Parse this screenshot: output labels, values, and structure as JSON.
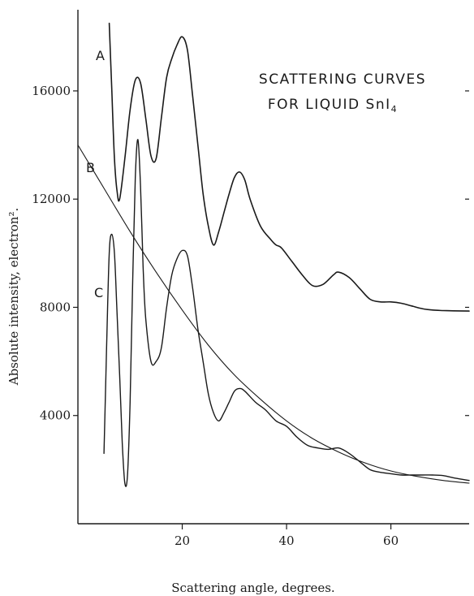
{
  "chart_data": {
    "type": "line",
    "title": "SCATTERING CURVES",
    "title_line2": "FOR LIQUID SnI",
    "title_subscript": "4",
    "xlabel": "Scattering angle, degrees.",
    "ylabel": "Absolute intensity, electron².",
    "xlim": [
      0,
      75
    ],
    "ylim": [
      0,
      19000
    ],
    "x_ticks": [
      20,
      40,
      60
    ],
    "y_ticks": [
      4000,
      8000,
      12000,
      16000
    ],
    "grid": false,
    "legend": "none",
    "series": [
      {
        "name": "A",
        "x": [
          6,
          6.5,
          7,
          7.5,
          8,
          9,
          10,
          11,
          12,
          13,
          14,
          15,
          16,
          17,
          18,
          19,
          20,
          21,
          22,
          23,
          24,
          25,
          26,
          27,
          28,
          29,
          30,
          31,
          32,
          33,
          35,
          37,
          38,
          39,
          41,
          43,
          45,
          47,
          49,
          50,
          52,
          54,
          56,
          58,
          60,
          62,
          64,
          66,
          68,
          70,
          72,
          75
        ],
        "y": [
          18500,
          16000,
          13500,
          12300,
          12000,
          13500,
          15300,
          16400,
          16300,
          15000,
          13600,
          13500,
          15000,
          16500,
          17200,
          17700,
          18000,
          17500,
          15800,
          14000,
          12200,
          11000,
          10300,
          10800,
          11500,
          12200,
          12800,
          13000,
          12700,
          12000,
          11000,
          10500,
          10300,
          10200,
          9700,
          9200,
          8800,
          8850,
          9200,
          9300,
          9100,
          8700,
          8300,
          8200,
          8200,
          8150,
          8050,
          7950,
          7900,
          7880,
          7870,
          7860
        ]
      },
      {
        "name": "B",
        "x": [
          0,
          5,
          10,
          15,
          20,
          25,
          30,
          35,
          40,
          45,
          50,
          55,
          60,
          65,
          70,
          75
        ],
        "y": [
          14000,
          12400,
          10800,
          9300,
          7900,
          6600,
          5500,
          4600,
          3800,
          3150,
          2650,
          2250,
          1950,
          1750,
          1600,
          1500
        ]
      },
      {
        "name": "C",
        "x": [
          5,
          5.5,
          6,
          6.5,
          7,
          7.5,
          8,
          8.5,
          9,
          9.5,
          10,
          10.5,
          11,
          11.5,
          12,
          12.5,
          13,
          14,
          15,
          16,
          17,
          18,
          19,
          20,
          21,
          22,
          23,
          24,
          25,
          26,
          27,
          28,
          29,
          30,
          31,
          32,
          34,
          36,
          38,
          40,
          42,
          44,
          46,
          48,
          50,
          52,
          54,
          56,
          58,
          60,
          62,
          64,
          66,
          68,
          70,
          72,
          75
        ],
        "y": [
          2600,
          6500,
          10000,
          10700,
          10000,
          7800,
          5500,
          3000,
          1500,
          1800,
          4500,
          9000,
          12800,
          14200,
          12500,
          9500,
          7600,
          6000,
          6000,
          6500,
          8000,
          9200,
          9800,
          10100,
          9900,
          8700,
          7200,
          6000,
          4800,
          4100,
          3800,
          4100,
          4500,
          4900,
          5000,
          4900,
          4500,
          4200,
          3800,
          3600,
          3200,
          2900,
          2800,
          2750,
          2800,
          2600,
          2300,
          2000,
          1900,
          1850,
          1800,
          1800,
          1800,
          1800,
          1780,
          1700,
          1600
        ]
      }
    ]
  }
}
